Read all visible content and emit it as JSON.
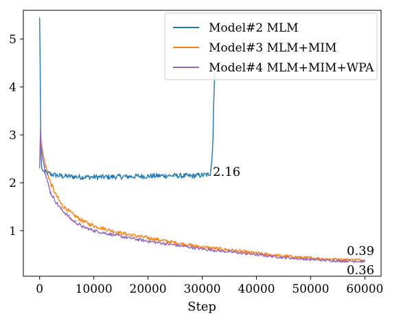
{
  "chart_data": {
    "type": "line",
    "title": "",
    "xlabel": "Step",
    "ylabel": "",
    "xlim": [
      -3000,
      63000
    ],
    "ylim": [
      0.05,
      5.6
    ],
    "xticks": [
      0,
      10000,
      20000,
      30000,
      40000,
      50000,
      60000
    ],
    "yticks": [
      1,
      2,
      3,
      4,
      5
    ],
    "grid": false,
    "legend_position": "top-right",
    "series": [
      {
        "name": "Model#2 MLM",
        "color": "#1f77b4",
        "x": [
          0,
          100,
          200,
          300,
          400,
          600,
          1000,
          2000,
          4000,
          8000,
          12000,
          16000,
          20000,
          24000,
          28000,
          30000,
          31000,
          31500,
          31800,
          32000,
          32100,
          32200,
          32300
        ],
        "y": [
          5.45,
          4.4,
          3.1,
          2.5,
          2.3,
          2.25,
          2.22,
          2.18,
          2.14,
          2.12,
          2.12,
          2.13,
          2.14,
          2.15,
          2.14,
          2.16,
          2.17,
          2.2,
          2.5,
          3.0,
          3.6,
          4.0,
          4.35
        ],
        "noise": 0.055
      },
      {
        "name": "Model#3 MLM+MIM",
        "color": "#ff7f0e",
        "x": [
          0,
          150,
          300,
          600,
          1000,
          1500,
          2000,
          3000,
          4000,
          6000,
          8000,
          10000,
          15000,
          20000,
          25000,
          30000,
          35000,
          40000,
          45000,
          50000,
          55000,
          60000
        ],
        "y": [
          2.3,
          3.0,
          2.85,
          2.6,
          2.4,
          2.2,
          2.0,
          1.75,
          1.55,
          1.35,
          1.2,
          1.1,
          0.95,
          0.85,
          0.75,
          0.66,
          0.6,
          0.53,
          0.47,
          0.43,
          0.4,
          0.39
        ],
        "noise": 0.045
      },
      {
        "name": "Model#4 MLM+MIM+WPA",
        "color": "#9467bd",
        "x": [
          0,
          150,
          300,
          600,
          1000,
          1500,
          2000,
          3000,
          4000,
          6000,
          8000,
          10000,
          15000,
          20000,
          25000,
          30000,
          35000,
          40000,
          45000,
          50000,
          55000,
          60000
        ],
        "y": [
          2.3,
          3.1,
          2.75,
          2.5,
          2.25,
          2.0,
          1.8,
          1.6,
          1.45,
          1.22,
          1.08,
          1.0,
          0.88,
          0.78,
          0.7,
          0.62,
          0.56,
          0.5,
          0.44,
          0.4,
          0.37,
          0.36
        ],
        "noise": 0.04
      }
    ],
    "annotations": [
      {
        "text": "2.16",
        "x": 32200,
        "y": 2.16
      },
      {
        "text": "0.39",
        "x": 60000,
        "y": 0.39
      },
      {
        "text": "0.36",
        "x": 60000,
        "y": 0.36
      }
    ]
  }
}
